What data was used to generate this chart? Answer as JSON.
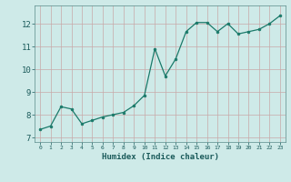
{
  "x": [
    0,
    1,
    2,
    3,
    4,
    5,
    6,
    7,
    8,
    9,
    10,
    11,
    12,
    13,
    14,
    15,
    16,
    17,
    18,
    19,
    20,
    21,
    22,
    23
  ],
  "y": [
    7.35,
    7.5,
    8.35,
    8.25,
    7.6,
    7.75,
    7.9,
    8.0,
    8.1,
    8.4,
    8.85,
    10.9,
    9.7,
    10.45,
    11.65,
    12.05,
    12.05,
    11.65,
    12.0,
    11.55,
    11.65,
    11.75,
    12.0,
    12.35
  ],
  "line_color": "#1a7a6a",
  "marker": "o",
  "marker_size": 2.0,
  "bg_color": "#ceeae8",
  "grid_color": "#b0cece",
  "xlabel": "Humidex (Indice chaleur)",
  "ylabel": "",
  "title": "",
  "xlim": [
    -0.5,
    23.5
  ],
  "ylim": [
    6.8,
    12.8
  ],
  "yticks": [
    7,
    8,
    9,
    10,
    11,
    12
  ],
  "xticks": [
    0,
    1,
    2,
    3,
    4,
    5,
    6,
    7,
    8,
    9,
    10,
    11,
    12,
    13,
    14,
    15,
    16,
    17,
    18,
    19,
    20,
    21,
    22,
    23
  ]
}
